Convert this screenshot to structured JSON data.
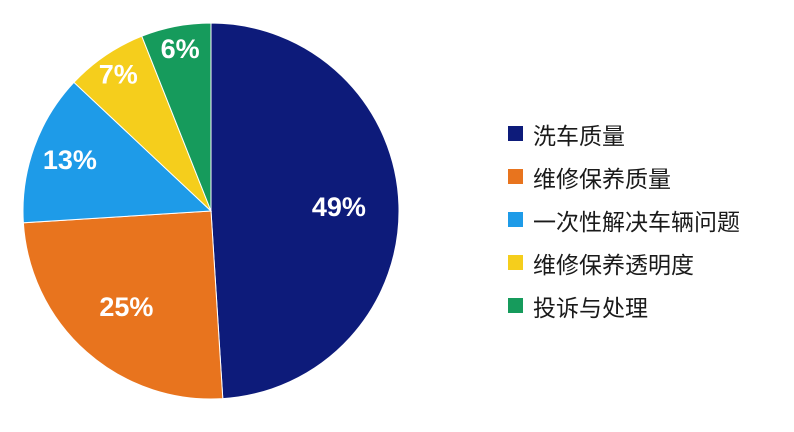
{
  "chart_data": {
    "type": "pie",
    "categories": [
      "洗车质量",
      "维修保养质量",
      "一次性解决车辆问题",
      "维修保养透明度",
      "投诉与处理"
    ],
    "values": [
      49,
      25,
      13,
      7,
      6
    ],
    "labels": [
      "49%",
      "25%",
      "13%",
      "7%",
      "6%"
    ],
    "colors": [
      "#0d1b7a",
      "#e8741e",
      "#1e9be8",
      "#f5ce1c",
      "#169b5c"
    ],
    "legend_position": "right",
    "start_angle": "12 o'clock, clockwise"
  }
}
